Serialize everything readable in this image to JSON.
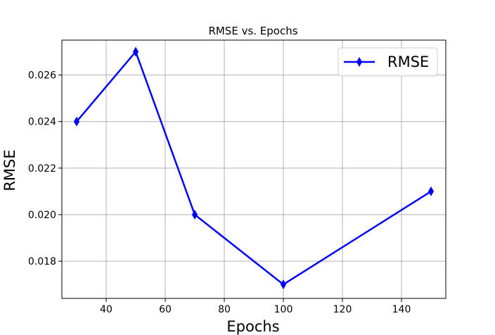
{
  "chart_data": {
    "type": "line",
    "title": "RMSE vs. Epochs",
    "xlabel": "Epochs",
    "ylabel": "RMSE",
    "xlim": [
      25,
      155
    ],
    "ylim": [
      0.0164,
      0.0275
    ],
    "x_ticks": [
      40,
      60,
      80,
      100,
      120,
      140
    ],
    "y_ticks": [
      0.018,
      0.02,
      0.022,
      0.024,
      0.026
    ],
    "x_tick_labels": [
      "40",
      "60",
      "80",
      "100",
      "120",
      "140"
    ],
    "y_tick_labels": [
      "0.018",
      "0.020",
      "0.022",
      "0.024",
      "0.026"
    ],
    "grid": true,
    "legend_position": "top-right",
    "series": [
      {
        "name": "RMSE",
        "color": "#0000ff",
        "marker": "thin-diamond",
        "x": [
          30,
          50,
          70,
          100,
          150
        ],
        "y": [
          0.024,
          0.027,
          0.02,
          0.017,
          0.021
        ]
      }
    ]
  }
}
